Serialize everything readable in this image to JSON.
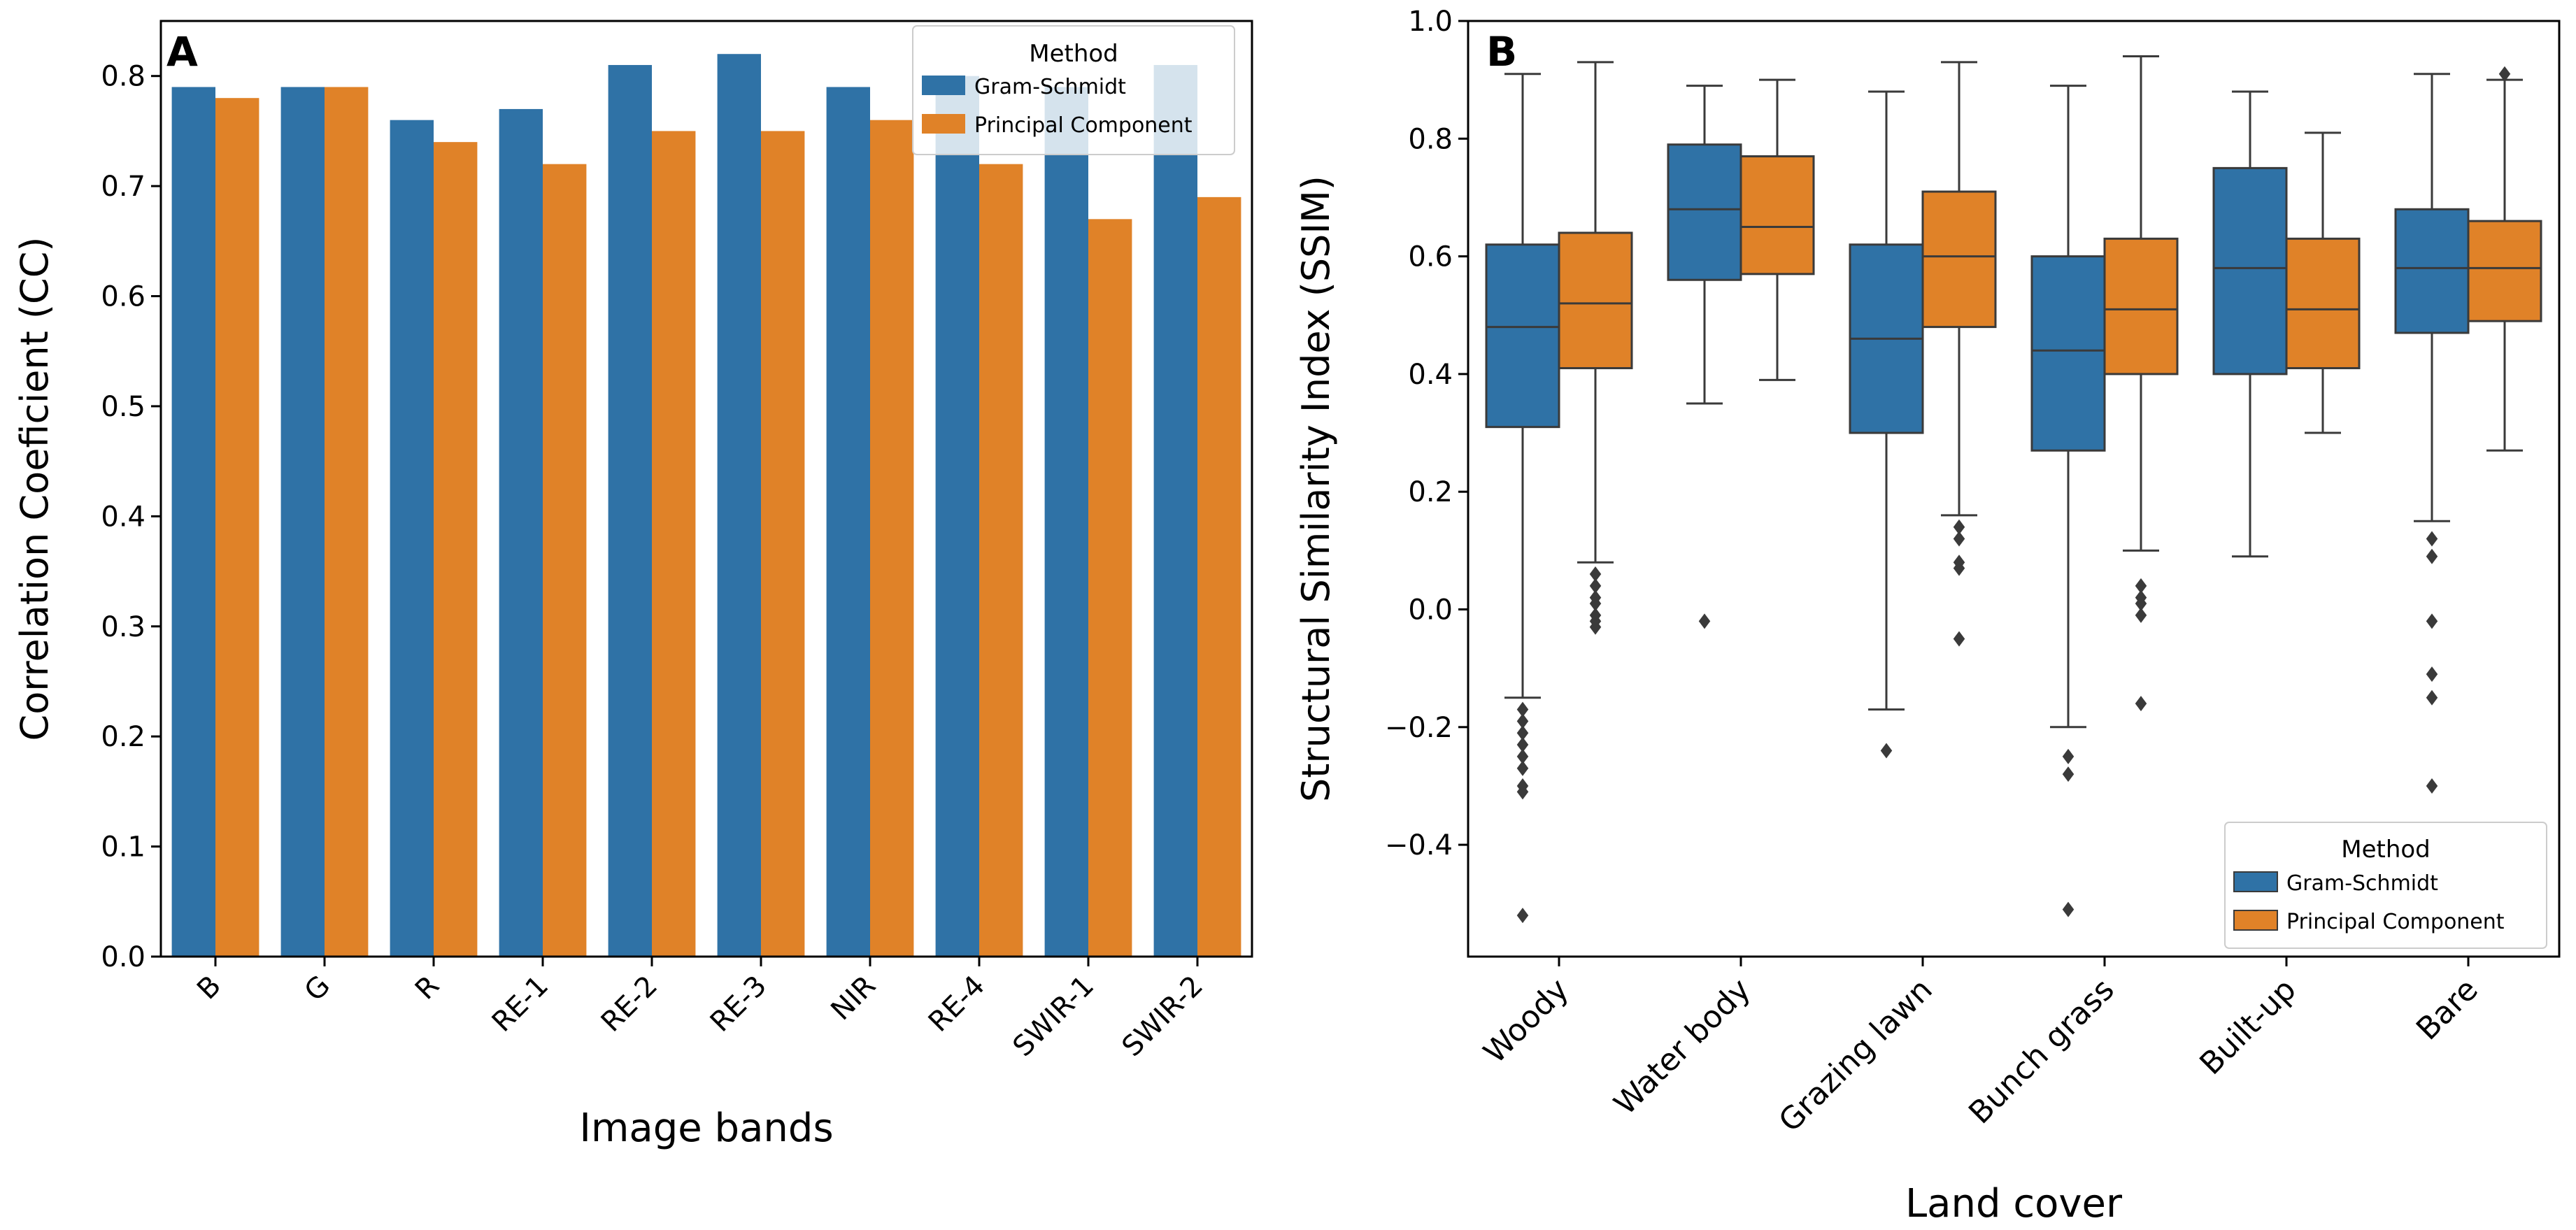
{
  "colors": {
    "gram_schmidt": "#2f72a6",
    "principal_component": "#e08228",
    "axis": "#000000",
    "whisker": "#3a3a3a"
  },
  "chart_data": [
    {
      "id": "A",
      "panel_label": "A",
      "type": "bar",
      "xlabel": "Image bands",
      "ylabel": "Correlation Coeficient (CC)",
      "ylim": [
        0.0,
        0.85
      ],
      "yticks": [
        "0.0",
        "0.1",
        "0.2",
        "0.3",
        "0.4",
        "0.5",
        "0.6",
        "0.7",
        "0.8"
      ],
      "categories": [
        "B",
        "G",
        "R",
        "RE-1",
        "RE-2",
        "RE-3",
        "NIR",
        "RE-4",
        "SWIR-1",
        "SWIR-2"
      ],
      "series": [
        {
          "name": "Gram-Schmidt",
          "values": [
            0.79,
            0.79,
            0.76,
            0.77,
            0.81,
            0.82,
            0.79,
            0.8,
            0.79,
            0.81
          ]
        },
        {
          "name": "Principal Component",
          "values": [
            0.78,
            0.79,
            0.74,
            0.72,
            0.75,
            0.75,
            0.76,
            0.72,
            0.67,
            0.69
          ]
        }
      ],
      "legend": {
        "title": "Method",
        "position": "top-right"
      }
    },
    {
      "id": "B",
      "panel_label": "B",
      "type": "box",
      "xlabel": "Land cover",
      "ylabel": "Structural Similarity Index (SSIM)",
      "ylim": [
        -0.59,
        1.0
      ],
      "yticks": [
        "−0.4",
        "−0.2",
        "0.0",
        "0.2",
        "0.4",
        "0.6",
        "0.8",
        "1.0"
      ],
      "categories": [
        "Woody",
        "Water body",
        "Grazing lawn",
        "Bunch grass",
        "Built-up",
        "Bare"
      ],
      "series": [
        {
          "name": "Gram-Schmidt",
          "boxes": [
            {
              "whislo": -0.15,
              "q1": 0.31,
              "med": 0.48,
              "q3": 0.62,
              "whishi": 0.91,
              "fliers": [
                -0.17,
                -0.19,
                -0.21,
                -0.23,
                -0.25,
                -0.27,
                -0.3,
                -0.31,
                -0.52
              ]
            },
            {
              "whislo": 0.35,
              "q1": 0.56,
              "med": 0.68,
              "q3": 0.79,
              "whishi": 0.89,
              "fliers": [
                -0.02
              ]
            },
            {
              "whislo": -0.17,
              "q1": 0.3,
              "med": 0.46,
              "q3": 0.62,
              "whishi": 0.88,
              "fliers": [
                -0.24
              ]
            },
            {
              "whislo": -0.2,
              "q1": 0.27,
              "med": 0.44,
              "q3": 0.6,
              "whishi": 0.89,
              "fliers": [
                -0.25,
                -0.28,
                -0.51
              ]
            },
            {
              "whislo": 0.09,
              "q1": 0.4,
              "med": 0.58,
              "q3": 0.75,
              "whishi": 0.88,
              "fliers": []
            },
            {
              "whislo": 0.15,
              "q1": 0.47,
              "med": 0.58,
              "q3": 0.68,
              "whishi": 0.91,
              "fliers": [
                0.12,
                0.09,
                -0.02,
                -0.11,
                -0.15,
                -0.3
              ]
            }
          ]
        },
        {
          "name": "Principal Component",
          "boxes": [
            {
              "whislo": 0.08,
              "q1": 0.41,
              "med": 0.52,
              "q3": 0.64,
              "whishi": 0.93,
              "fliers": [
                0.06,
                0.04,
                0.02,
                0.01,
                -0.01,
                -0.02,
                -0.03
              ]
            },
            {
              "whislo": 0.39,
              "q1": 0.57,
              "med": 0.65,
              "q3": 0.77,
              "whishi": 0.9,
              "fliers": []
            },
            {
              "whislo": 0.16,
              "q1": 0.48,
              "med": 0.6,
              "q3": 0.71,
              "whishi": 0.93,
              "fliers": [
                0.14,
                0.12,
                0.08,
                0.07,
                -0.05
              ]
            },
            {
              "whislo": 0.1,
              "q1": 0.4,
              "med": 0.51,
              "q3": 0.63,
              "whishi": 0.94,
              "fliers": [
                0.04,
                0.02,
                0.01,
                -0.01,
                -0.16
              ]
            },
            {
              "whislo": 0.3,
              "q1": 0.41,
              "med": 0.51,
              "q3": 0.63,
              "whishi": 0.81,
              "fliers": []
            },
            {
              "whislo": 0.27,
              "q1": 0.49,
              "med": 0.58,
              "q3": 0.66,
              "whishi": 0.9,
              "fliers": [
                0.91
              ]
            }
          ]
        }
      ],
      "legend": {
        "title": "Method",
        "position": "bottom-right"
      }
    }
  ]
}
